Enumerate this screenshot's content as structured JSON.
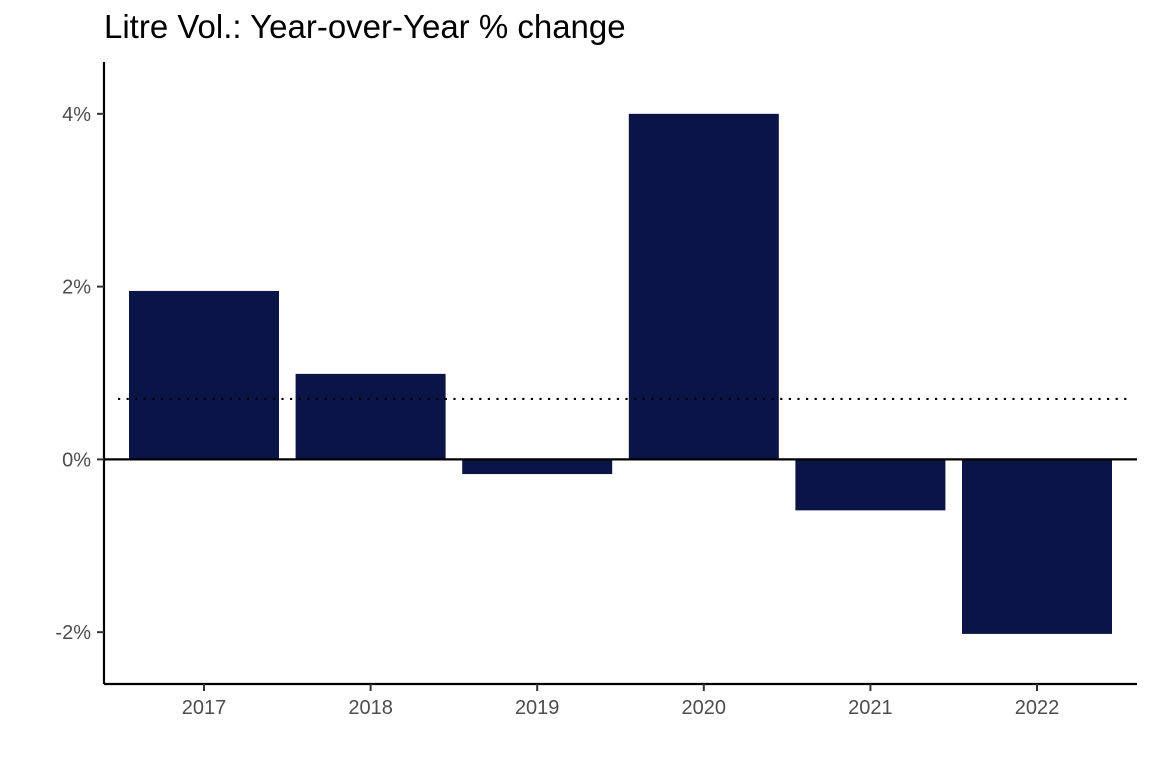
{
  "chart_data": {
    "type": "bar",
    "title": "Litre Vol.: Year-over-Year % change",
    "categories": [
      "2017",
      "2018",
      "2019",
      "2020",
      "2021",
      "2022"
    ],
    "values": [
      1.95,
      0.99,
      -0.17,
      4.0,
      -0.59,
      -2.02
    ],
    "value_unit": "%",
    "ylim": [
      -2.6,
      4.6
    ],
    "yticks": [
      -2,
      0,
      2,
      4
    ],
    "ytick_labels": [
      "-2%",
      "0%",
      "2%",
      "4%"
    ],
    "reference_line": {
      "value": 0.7,
      "style": "dotted"
    },
    "zero_line": true,
    "grid": false,
    "legend": "none",
    "bar_color": "#0b1446",
    "axis_color": "#000000",
    "tick_label_color": "#4d4d4d"
  }
}
